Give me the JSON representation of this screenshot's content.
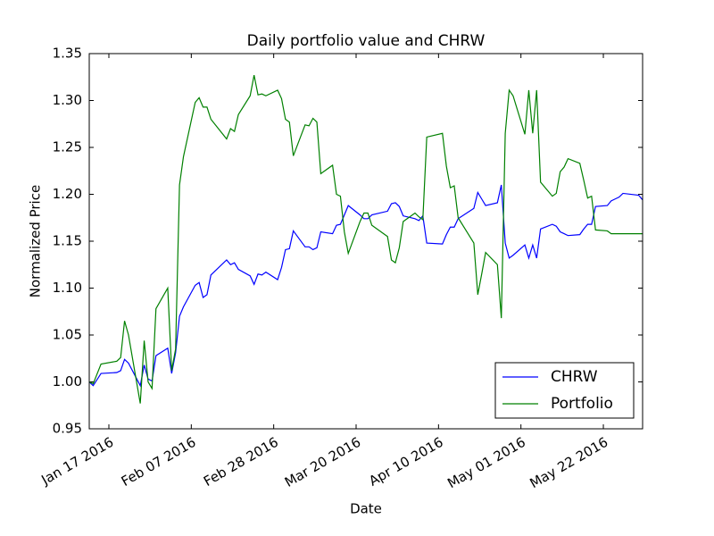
{
  "chart_data": {
    "type": "line",
    "title": "Daily portfolio value and CHRW",
    "xlabel": "Date",
    "ylabel": "Normalized Price",
    "x": [
      "2016-01-12",
      "2016-01-13",
      "2016-01-15",
      "2016-01-19",
      "2016-01-20",
      "2016-01-21",
      "2016-01-22",
      "2016-01-25",
      "2016-01-26",
      "2016-01-27",
      "2016-01-28",
      "2016-01-29",
      "2016-02-01",
      "2016-02-02",
      "2016-02-03",
      "2016-02-04",
      "2016-02-05",
      "2016-02-08",
      "2016-02-09",
      "2016-02-10",
      "2016-02-11",
      "2016-02-12",
      "2016-02-16",
      "2016-02-17",
      "2016-02-18",
      "2016-02-19",
      "2016-02-22",
      "2016-02-23",
      "2016-02-24",
      "2016-02-25",
      "2016-02-26",
      "2016-02-29",
      "2016-03-01",
      "2016-03-02",
      "2016-03-03",
      "2016-03-04",
      "2016-03-07",
      "2016-03-08",
      "2016-03-09",
      "2016-03-10",
      "2016-03-11",
      "2016-03-14",
      "2016-03-15",
      "2016-03-16",
      "2016-03-17",
      "2016-03-18",
      "2016-03-21",
      "2016-03-22",
      "2016-03-23",
      "2016-03-24",
      "2016-03-28",
      "2016-03-29",
      "2016-03-30",
      "2016-03-31",
      "2016-04-01",
      "2016-04-04",
      "2016-04-05",
      "2016-04-06",
      "2016-04-07",
      "2016-04-11",
      "2016-04-12",
      "2016-04-13",
      "2016-04-14",
      "2016-04-15",
      "2016-04-19",
      "2016-04-20",
      "2016-04-21",
      "2016-04-22",
      "2016-04-25",
      "2016-04-26",
      "2016-04-27",
      "2016-04-28",
      "2016-04-29",
      "2016-05-02",
      "2016-05-03",
      "2016-05-04",
      "2016-05-05",
      "2016-05-06",
      "2016-05-09",
      "2016-05-10",
      "2016-05-11",
      "2016-05-12",
      "2016-05-13",
      "2016-05-16",
      "2016-05-17",
      "2016-05-18",
      "2016-05-19",
      "2016-05-20",
      "2016-05-23",
      "2016-05-24",
      "2016-05-25",
      "2016-05-26",
      "2016-05-27",
      "2016-05-31",
      "2016-06-01"
    ],
    "series": [
      {
        "name": "CHRW",
        "color": "#0000ff",
        "values": [
          1.0,
          0.996,
          1.009,
          1.01,
          1.012,
          1.024,
          1.02,
          0.996,
          1.018,
          1.003,
          1.001,
          1.028,
          1.036,
          1.009,
          1.031,
          1.07,
          1.08,
          1.103,
          1.106,
          1.09,
          1.093,
          1.114,
          1.13,
          1.125,
          1.127,
          1.12,
          1.113,
          1.104,
          1.115,
          1.114,
          1.117,
          1.109,
          1.122,
          1.141,
          1.142,
          1.161,
          1.144,
          1.144,
          1.141,
          1.143,
          1.16,
          1.158,
          1.167,
          1.168,
          1.178,
          1.188,
          1.178,
          1.174,
          1.174,
          1.178,
          1.182,
          1.19,
          1.191,
          1.187,
          1.177,
          1.174,
          1.172,
          1.177,
          1.148,
          1.147,
          1.157,
          1.165,
          1.165,
          1.174,
          1.185,
          1.202,
          1.195,
          1.188,
          1.191,
          1.21,
          1.148,
          1.132,
          1.135,
          1.146,
          1.132,
          1.146,
          1.132,
          1.163,
          1.168,
          1.166,
          1.16,
          1.158,
          1.156,
          1.157,
          1.163,
          1.168,
          1.168,
          1.187,
          1.188,
          1.193,
          1.195,
          1.197,
          1.201,
          1.199,
          1.194
        ]
      },
      {
        "name": "Portfolio",
        "color": "#008000",
        "values": [
          1.0,
          0.998,
          1.019,
          1.022,
          1.026,
          1.065,
          1.05,
          0.977,
          1.044,
          1.0,
          0.993,
          1.078,
          1.1,
          1.012,
          1.035,
          1.21,
          1.24,
          1.298,
          1.303,
          1.293,
          1.293,
          1.28,
          1.259,
          1.27,
          1.267,
          1.285,
          1.305,
          1.327,
          1.306,
          1.307,
          1.305,
          1.311,
          1.302,
          1.28,
          1.277,
          1.241,
          1.274,
          1.273,
          1.281,
          1.277,
          1.222,
          1.231,
          1.2,
          1.198,
          1.16,
          1.137,
          1.171,
          1.18,
          1.18,
          1.167,
          1.155,
          1.13,
          1.127,
          1.143,
          1.171,
          1.18,
          1.176,
          1.173,
          1.261,
          1.265,
          1.23,
          1.207,
          1.209,
          1.175,
          1.148,
          1.093,
          1.115,
          1.138,
          1.125,
          1.068,
          1.265,
          1.311,
          1.305,
          1.264,
          1.311,
          1.265,
          1.311,
          1.213,
          1.198,
          1.201,
          1.224,
          1.229,
          1.238,
          1.233,
          1.215,
          1.196,
          1.198,
          1.162,
          1.161,
          1.158,
          1.158,
          1.158,
          1.158,
          1.158,
          1.158
        ]
      }
    ],
    "xlim": [
      "2016-01-12",
      "2016-06-01"
    ],
    "xticks": [
      {
        "value": "2016-01-17",
        "label": "Jan 17 2016"
      },
      {
        "value": "2016-02-07",
        "label": "Feb 07 2016"
      },
      {
        "value": "2016-02-28",
        "label": "Feb 28 2016"
      },
      {
        "value": "2016-03-20",
        "label": "Mar 20 2016"
      },
      {
        "value": "2016-04-10",
        "label": "Apr 10 2016"
      },
      {
        "value": "2016-05-01",
        "label": "May 01 2016"
      },
      {
        "value": "2016-05-22",
        "label": "May 22 2016"
      }
    ],
    "ylim": [
      0.95,
      1.35
    ],
    "yticks": [
      0.95,
      {
        "value": 1,
        "label": "1.00"
      },
      1.05,
      {
        "value": 1.1,
        "label": "1.10"
      },
      1.15,
      {
        "value": 1.2,
        "label": "1.20"
      },
      1.25,
      {
        "value": 1.3,
        "label": "1.30"
      },
      1.35
    ],
    "legend": "lower right"
  }
}
